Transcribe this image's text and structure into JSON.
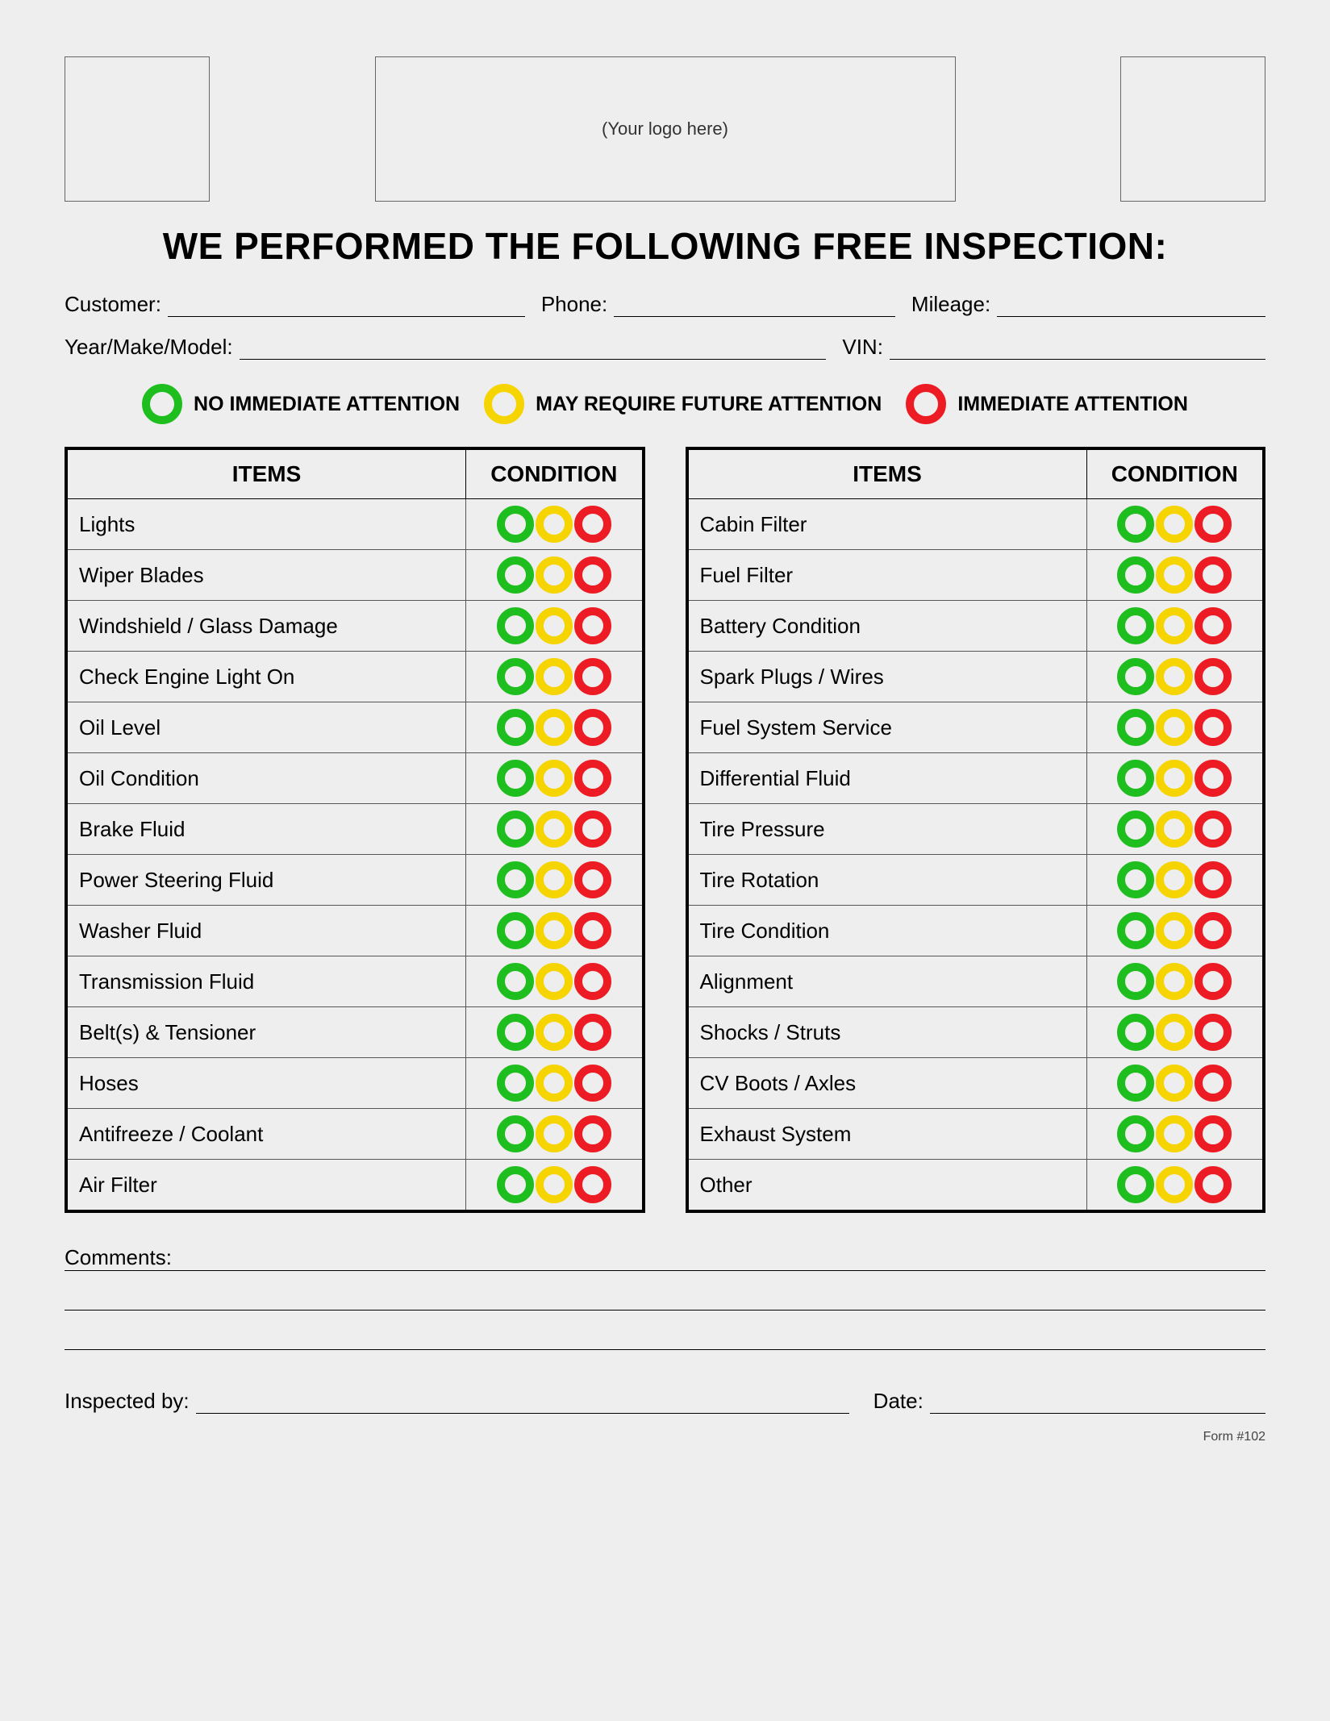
{
  "header": {
    "logo_placeholder": "(Your logo here)",
    "title": "WE PERFORMED THE FOLLOWING FREE INSPECTION:"
  },
  "fields": {
    "customer": "Customer:",
    "phone": "Phone:",
    "mileage": "Mileage:",
    "ymm": "Year/Make/Model:",
    "vin": "VIN:",
    "comments": "Comments:",
    "inspected_by": "Inspected by:",
    "date": "Date:"
  },
  "legend": {
    "green": "NO IMMEDIATE ATTENTION",
    "yellow": "MAY REQUIRE FUTURE ATTENTION",
    "red": "IMMEDIATE ATTENTION"
  },
  "table_headers": {
    "items": "ITEMS",
    "condition": "CONDITION"
  },
  "colors": {
    "green": "#1fbe1f",
    "yellow": "#f5d400",
    "red": "#ed1c24"
  },
  "left_items": [
    "Lights",
    "Wiper Blades",
    "Windshield / Glass Damage",
    "Check Engine Light On",
    "Oil Level",
    "Oil Condition",
    "Brake Fluid",
    "Power Steering Fluid",
    "Washer Fluid",
    "Transmission Fluid",
    "Belt(s) & Tensioner",
    "Hoses",
    "Antifreeze / Coolant",
    "Air Filter"
  ],
  "right_items": [
    "Cabin Filter",
    "Fuel Filter",
    "Battery Condition",
    "Spark Plugs / Wires",
    "Fuel System Service",
    "Differential Fluid",
    "Tire Pressure",
    "Tire Rotation",
    "Tire Condition",
    "Alignment",
    "Shocks / Struts",
    "CV Boots / Axles",
    "Exhaust System",
    "Other"
  ],
  "form_number": "Form #102"
}
